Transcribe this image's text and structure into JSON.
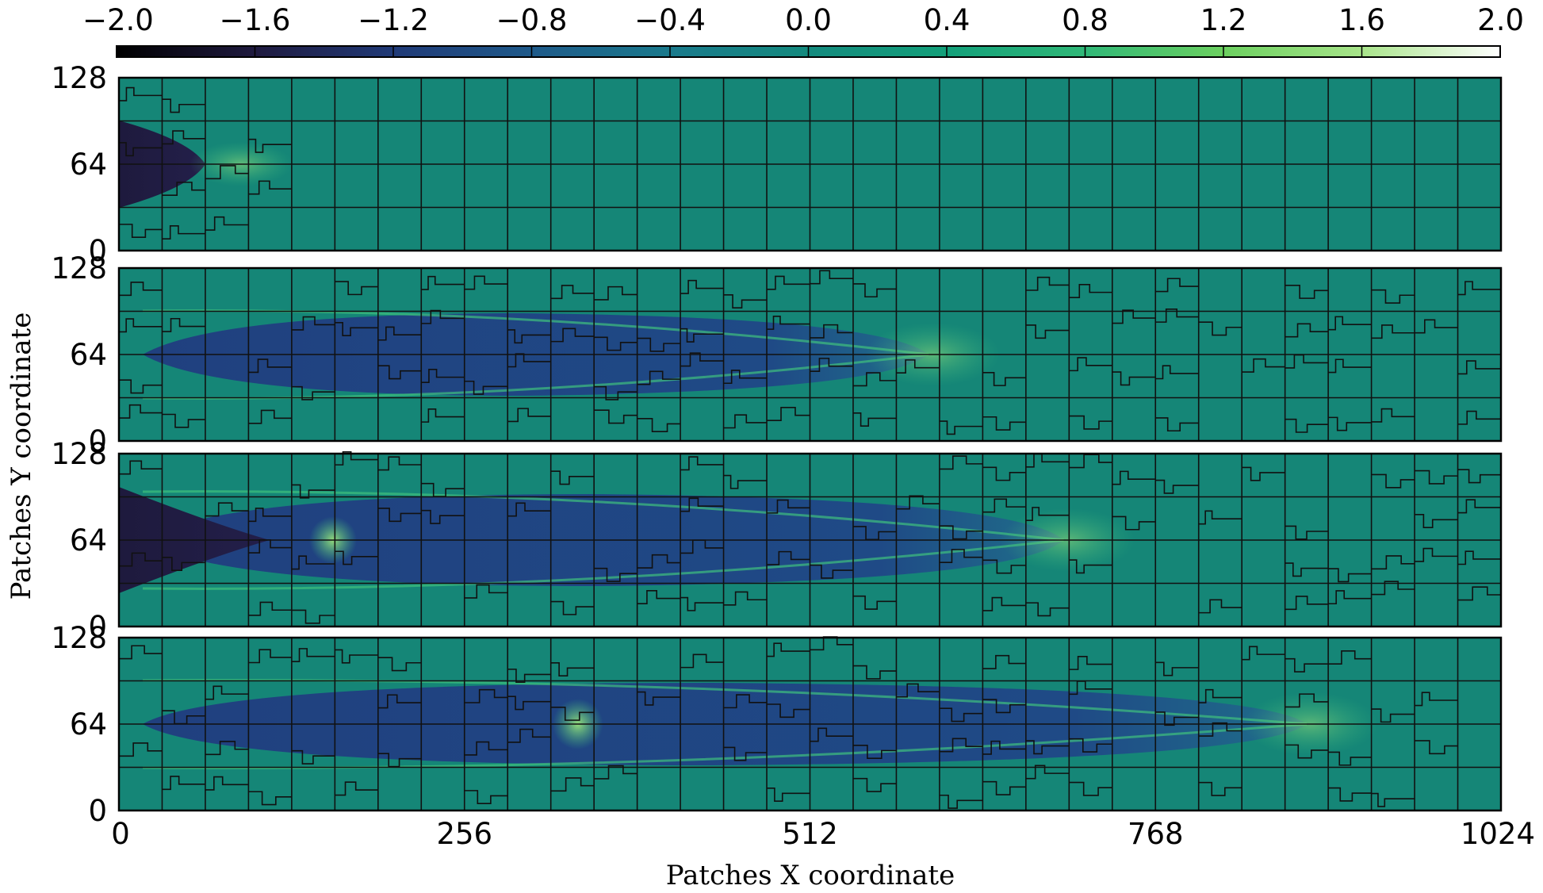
{
  "chart_data": {
    "type": "heatmap",
    "colorbar": {
      "ticks": [
        "−2.0",
        "−1.6",
        "−1.2",
        "−0.8",
        "−0.4",
        "0.0",
        "0.4",
        "0.8",
        "1.2",
        "1.6",
        "2.0"
      ],
      "range": [
        -2.0,
        2.0
      ],
      "colormap": [
        "#000000",
        "#1f1a3f",
        "#203a77",
        "#1f5a8a",
        "#1a7a8c",
        "#148a7e",
        "#13a07a",
        "#30b878",
        "#6cd060",
        "#a8e48a",
        "#ffffff"
      ]
    },
    "xlabel": "Patches X coordinate",
    "ylabel": "Patches Y coordinate",
    "xticks": [
      "0",
      "256",
      "512",
      "768",
      "1024"
    ],
    "xlim": [
      0,
      1024
    ],
    "yticks": [
      "0",
      "64",
      "128"
    ],
    "ylim": [
      0,
      128
    ],
    "background_value": 0.0,
    "panels": [
      {
        "id": 1,
        "patch_columns": 32,
        "patch_rows": 4,
        "shock_extent_x": 64,
        "core_value": -1.9
      },
      {
        "id": 2,
        "patch_columns": 32,
        "patch_rows": 4,
        "shock_extent_x": 600,
        "core_value": -1.0
      },
      {
        "id": 3,
        "patch_columns": 32,
        "patch_rows": 4,
        "shock_extent_x": 700,
        "core_value": -1.9
      },
      {
        "id": 4,
        "patch_columns": 32,
        "patch_rows": 4,
        "shock_extent_x": 880,
        "core_value": -1.0
      }
    ]
  }
}
